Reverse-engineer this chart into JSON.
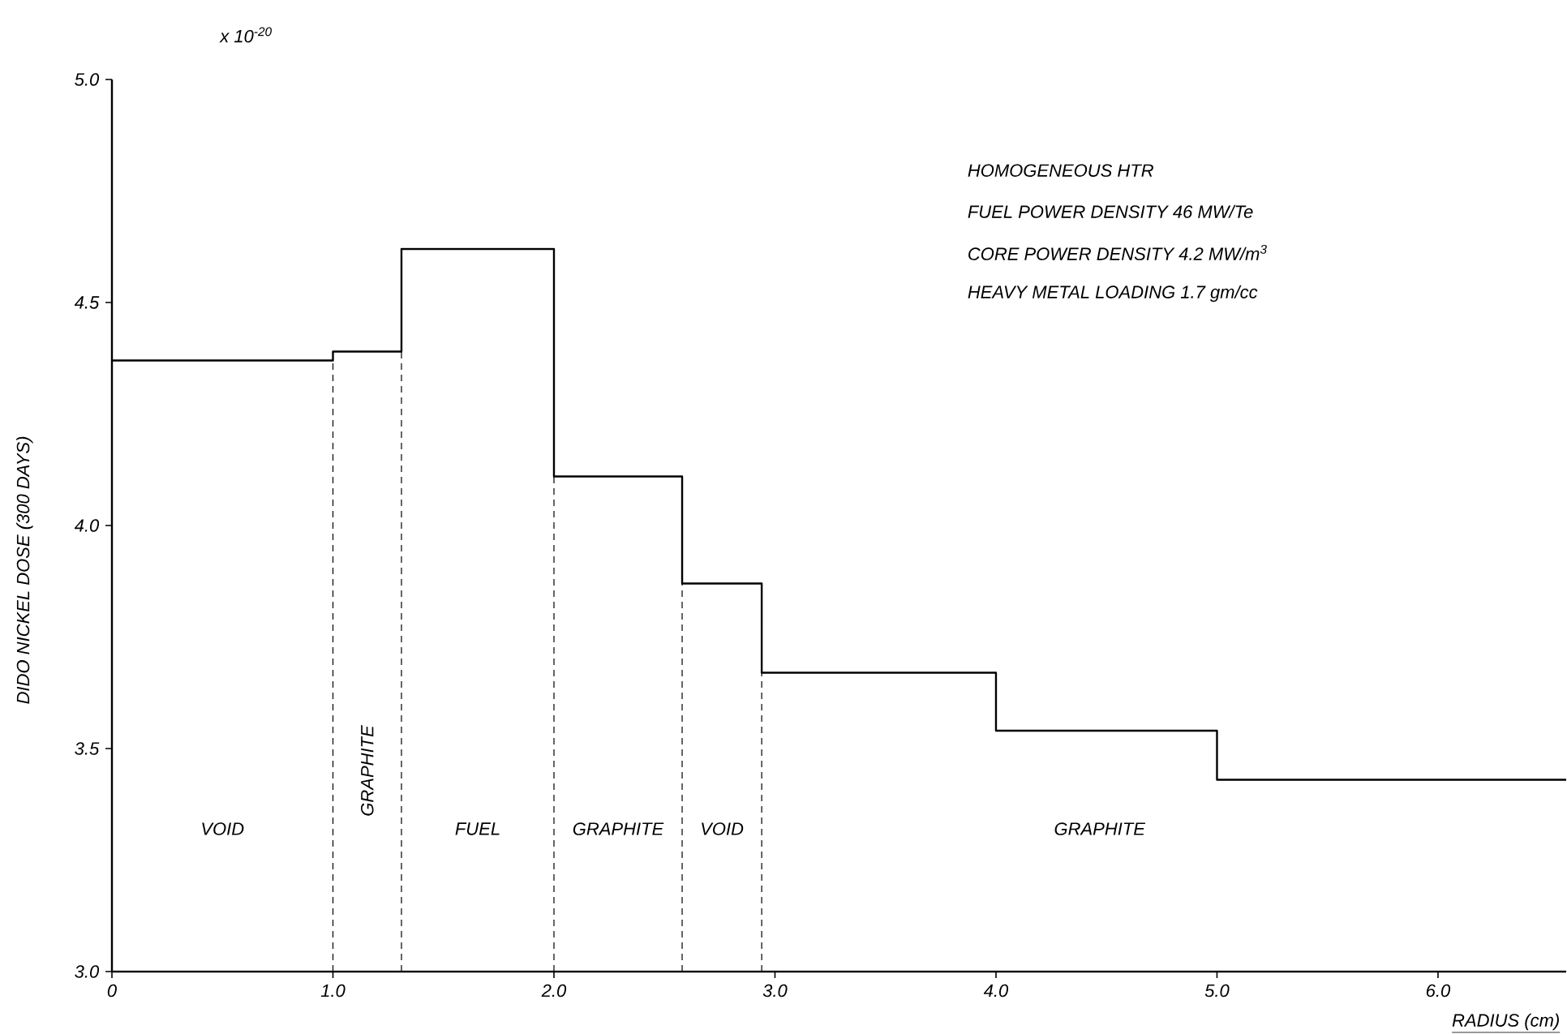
{
  "chart_data": {
    "type": "step",
    "color": "#000000",
    "xlabel": "RADIUS (cm)",
    "ylabel": "DIDO NICKEL DOSE  (300 DAYS)",
    "x": [
      0,
      1.0,
      1.31,
      2.0,
      2.58,
      2.94,
      4.0,
      5.0,
      6.58
    ],
    "values": [
      4.37,
      4.39,
      4.62,
      4.11,
      3.87,
      3.67,
      3.54,
      3.43,
      3.43
    ],
    "xlim": [
      0,
      6.58
    ],
    "ylim": [
      3.0,
      5.0
    ],
    "xticks": [
      0,
      {
        "value": 1,
        "label": "1.0"
      },
      {
        "value": 2,
        "label": "2.0"
      },
      {
        "value": 3,
        "label": "3.0"
      },
      {
        "value": 4,
        "label": "4.0"
      },
      {
        "value": 5,
        "label": "5.0"
      },
      {
        "value": 6,
        "label": "6.0"
      }
    ],
    "yticks": [
      {
        "value": 3,
        "label": "3.0"
      },
      {
        "value": 3.5,
        "label": "3.5"
      },
      {
        "value": 4,
        "label": "4.0"
      },
      {
        "value": 4.5,
        "label": "4.5"
      },
      {
        "value": 5,
        "label": "5.0"
      }
    ],
    "ref_lines": [
      {
        "axis": "x",
        "value": 1.0,
        "line_style": "dashed"
      },
      {
        "axis": "x",
        "value": 1.31,
        "line_style": "dashed"
      },
      {
        "axis": "x",
        "value": 2.0,
        "line_style": "dashed"
      },
      {
        "axis": "x",
        "value": 2.58,
        "line_style": "dashed"
      },
      {
        "axis": "x",
        "value": 2.94,
        "line_style": "dashed"
      }
    ],
    "annotations": [
      "x 10$^{-20}$",
      "HOMOGENEOUS HTR",
      "FUEL POWER DENSITY    46 MW/Te",
      "CORE POWER DENSITY    4.2 MW/m$^{3}$",
      "HEAVY METAL LOADING    1.7 gm/cc",
      "VOID",
      "GRAPHITE",
      "FUEL",
      "GRAPHITE",
      "VOID",
      "GRAPHITE"
    ]
  }
}
